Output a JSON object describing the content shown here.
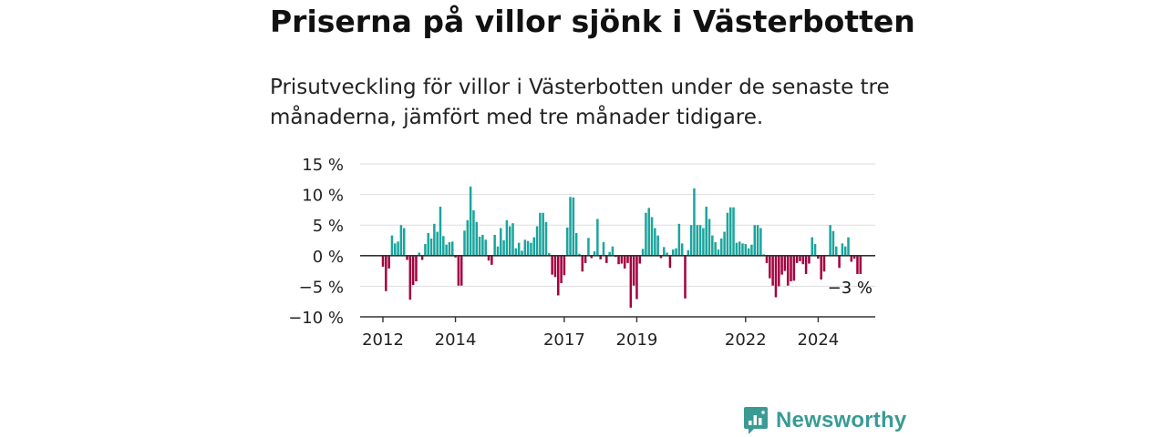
{
  "header": {
    "title": "Priserna på villor sjönk i Västerbotten",
    "subtitle": "Prisutveckling för villor i Västerbotten under de senaste tre månaderna, jämfört med tre månader tidigare."
  },
  "brand": {
    "name": "Newsworthy",
    "icon": "newsworthy-logo-icon",
    "color": "#3a9b95"
  },
  "colors": {
    "positive": "#1aa59d",
    "negative": "#a3003f",
    "grid": "#dddddd",
    "axis": "#333333"
  },
  "chart_data": {
    "type": "bar",
    "x_start": "2012-01",
    "y_ticks": [
      {
        "value": 15,
        "label": "15 %"
      },
      {
        "value": 10,
        "label": "10 %"
      },
      {
        "value": 5,
        "label": "5 %"
      },
      {
        "value": 0,
        "label": "0 %"
      },
      {
        "value": -5,
        "label": "−5 %"
      },
      {
        "value": -10,
        "label": "−10 %"
      }
    ],
    "ylim": [
      -10,
      15
    ],
    "x_ticks": [
      "2012",
      "2014",
      "2017",
      "2019",
      "2022",
      "2024"
    ],
    "annotation": "−3 %",
    "values": [
      -1.8,
      -5.8,
      -2.1,
      3.3,
      2,
      2.3,
      5,
      4.5,
      -0.7,
      -7.2,
      -4.8,
      -4.2,
      0.5,
      -0.7,
      1.9,
      3.7,
      2.8,
      5.2,
      3.9,
      8,
      3.2,
      1.8,
      2.2,
      2.3,
      -0.3,
      -4.9,
      -4.9,
      4.1,
      5.8,
      11.3,
      7.4,
      5.5,
      3.1,
      3.4,
      2.6,
      -0.8,
      -1.5,
      3.4,
      1.5,
      4.5,
      2.5,
      5.8,
      4.8,
      5.3,
      1.2,
      2.1,
      0.8,
      2.6,
      2.4,
      2.1,
      3,
      4.8,
      7,
      7,
      5.5,
      0.4,
      -3.1,
      -3.5,
      -6.5,
      -4.5,
      -3.2,
      4.6,
      9.6,
      9.5,
      3.7,
      0.3,
      -2.6,
      -1.2,
      2.9,
      -0.4,
      0.7,
      6,
      -0.6,
      2.2,
      -1.2,
      0.6,
      1.5,
      -0.2,
      -1.4,
      -1.3,
      -2.1,
      -1.2,
      -8.5,
      -4.9,
      -7.1,
      -1.3,
      1.1,
      7,
      7.8,
      6.3,
      4.5,
      3.3,
      -0.4,
      1.4,
      0.5,
      -2,
      1,
      1.2,
      5.2,
      2,
      -7,
      0.9,
      5,
      11,
      5,
      5,
      4.5,
      8,
      6,
      3.3,
      2.2,
      1,
      2.8,
      3.9,
      7,
      7.9,
      7.9,
      2.1,
      2.3,
      2,
      1.9,
      1.2,
      1.8,
      5,
      5,
      4.5,
      0.2,
      -1.2,
      -3.7,
      -4.9,
      -6.8,
      -5,
      -3.1,
      -2.5,
      -4.9,
      -4.2,
      -4.1,
      -1.2,
      -0.9,
      -1.4,
      -3,
      -1.3,
      3,
      1.9,
      -0.5,
      -3.9,
      -2.6,
      0,
      5,
      4,
      1.5,
      -2,
      2,
      1.5,
      3,
      -1,
      -0.5,
      -3,
      -3
    ]
  }
}
